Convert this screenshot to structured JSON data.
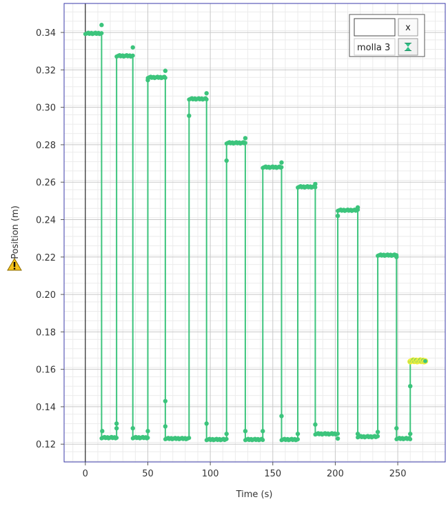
{
  "chart_data": {
    "type": "line",
    "title": "",
    "xlabel": "Time (s)",
    "ylabel": "Position (m)",
    "xlim": [
      -17,
      288
    ],
    "ylim": [
      0.1105,
      0.3555
    ],
    "x_ticks": [
      0,
      50,
      100,
      150,
      200,
      250
    ],
    "y_ticks": [
      0.12,
      0.14,
      0.16,
      0.18,
      0.2,
      0.22,
      0.24,
      0.26,
      0.28,
      0.3,
      0.32,
      0.34
    ],
    "grid": true,
    "legend_position": "top-right",
    "series": [
      {
        "name": "molla 3",
        "color": "#3cc47c",
        "segments": [
          {
            "x0": 0,
            "x1": 13,
            "y": 0.3395
          },
          {
            "x0": 13,
            "x1": 25,
            "y": 0.1235
          },
          {
            "x0": 25,
            "x1": 38,
            "y": 0.3275
          },
          {
            "x0": 38,
            "x1": 50,
            "y": 0.1235
          },
          {
            "x0": 50,
            "x1": 64,
            "y": 0.316
          },
          {
            "x0": 64,
            "x1": 83,
            "y": 0.123
          },
          {
            "x0": 83,
            "x1": 97,
            "y": 0.3045
          },
          {
            "x0": 97,
            "x1": 113,
            "y": 0.1225
          },
          {
            "x0": 113,
            "x1": 128,
            "y": 0.281
          },
          {
            "x0": 128,
            "x1": 142,
            "y": 0.1225
          },
          {
            "x0": 142,
            "x1": 157,
            "y": 0.268
          },
          {
            "x0": 157,
            "x1": 170,
            "y": 0.1225
          },
          {
            "x0": 170,
            "x1": 184,
            "y": 0.2575
          },
          {
            "x0": 184,
            "x1": 202,
            "y": 0.1255
          },
          {
            "x0": 202,
            "x1": 218,
            "y": 0.245
          },
          {
            "x0": 218,
            "x1": 234,
            "y": 0.124
          },
          {
            "x0": 234,
            "x1": 249,
            "y": 0.221
          },
          {
            "x0": 249,
            "x1": 260,
            "y": 0.123
          },
          {
            "x0": 260,
            "x1": 272,
            "y": 0.1645
          }
        ],
        "outliers": [
          {
            "x": 13,
            "y": 0.344
          },
          {
            "x": 13.5,
            "y": 0.127
          },
          {
            "x": 25,
            "y": 0.131
          },
          {
            "x": 25,
            "y": 0.1285
          },
          {
            "x": 38,
            "y": 0.332
          },
          {
            "x": 38,
            "y": 0.1285
          },
          {
            "x": 50,
            "y": 0.3145
          },
          {
            "x": 50,
            "y": 0.127
          },
          {
            "x": 64,
            "y": 0.3195
          },
          {
            "x": 64,
            "y": 0.143
          },
          {
            "x": 64,
            "y": 0.1295
          },
          {
            "x": 83,
            "y": 0.2955
          },
          {
            "x": 97,
            "y": 0.3075
          },
          {
            "x": 97,
            "y": 0.131
          },
          {
            "x": 113,
            "y": 0.2715
          },
          {
            "x": 113,
            "y": 0.1255
          },
          {
            "x": 128,
            "y": 0.2835
          },
          {
            "x": 128,
            "y": 0.127
          },
          {
            "x": 142,
            "y": 0.127
          },
          {
            "x": 157,
            "y": 0.2705
          },
          {
            "x": 157,
            "y": 0.135
          },
          {
            "x": 170,
            "y": 0.1255
          },
          {
            "x": 184,
            "y": 0.259
          },
          {
            "x": 184,
            "y": 0.1305
          },
          {
            "x": 202,
            "y": 0.242
          },
          {
            "x": 202,
            "y": 0.123
          },
          {
            "x": 218,
            "y": 0.2465
          },
          {
            "x": 218,
            "y": 0.1255
          },
          {
            "x": 234,
            "y": 0.1265
          },
          {
            "x": 249,
            "y": 0.22
          },
          {
            "x": 249,
            "y": 0.1285
          },
          {
            "x": 260,
            "y": 0.151
          },
          {
            "x": 260,
            "y": 0.1255
          }
        ],
        "highlight_color": "#f2ee3a"
      }
    ]
  },
  "legend": {
    "items": [
      {
        "label": "molla 3",
        "icon": "hourglass-icon"
      }
    ],
    "close_label": "x"
  },
  "icons": {
    "warning": "warning-triangle-icon"
  },
  "colors": {
    "plot_border": "#3a3aa8",
    "axis_line": "#000000",
    "grid_major": "#c8c8c8",
    "grid_minor": "#ebebeb"
  }
}
